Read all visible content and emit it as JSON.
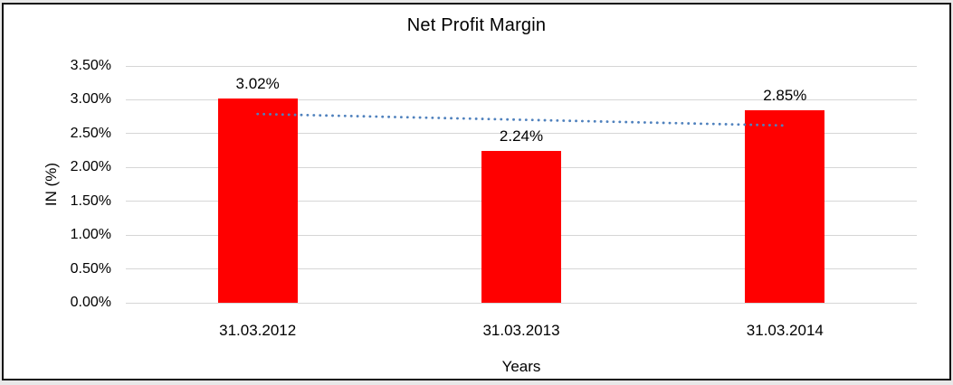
{
  "chart_data": {
    "type": "bar",
    "title": "Net Profit Margin",
    "xlabel": "Years",
    "ylabel": "IN (%)",
    "categories": [
      "31.03.2012",
      "31.03.2013",
      "31.03.2014"
    ],
    "values": [
      3.02,
      2.24,
      2.85
    ],
    "data_labels": [
      "3.02%",
      "2.24%",
      "2.85%"
    ],
    "ylim": [
      0,
      3.5
    ],
    "ytick_step": 0.5,
    "ytick_labels": [
      "0.00%",
      "0.50%",
      "1.00%",
      "1.50%",
      "2.00%",
      "2.50%",
      "3.00%",
      "3.50%"
    ],
    "grid": true,
    "legend": "none",
    "bar_color": "#ff0000",
    "gridline_color": "#d6d6d6",
    "text_color": "#000000",
    "frame_border_color": "#111111",
    "trendline": {
      "type": "linear",
      "style": "dotted",
      "color": "#4f81bd",
      "start_value": 2.79,
      "end_value": 2.62
    }
  }
}
